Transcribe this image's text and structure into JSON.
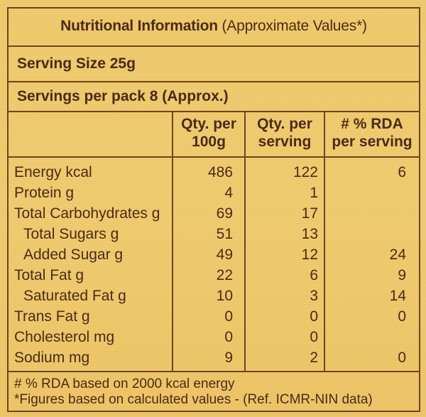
{
  "header": {
    "title_bold": "Nutritional Information",
    "title_rest": "(Approximate Values*)"
  },
  "serving_size": "Serving Size 25g",
  "servings_per_pack": "Servings per pack 8 (Approx.)",
  "columns": {
    "qty_100g": [
      "Qty. per",
      "100g"
    ],
    "qty_serving": [
      "Qty. per",
      "serving"
    ],
    "rda": [
      "# % RDA",
      "per serving"
    ]
  },
  "rows": [
    {
      "label": "Energy kcal",
      "per100g": "486",
      "perServing": "122",
      "rda": "6",
      "indent": false
    },
    {
      "label": "Protein g",
      "per100g": "4",
      "perServing": "1",
      "rda": "",
      "indent": false
    },
    {
      "label": "Total Carbohydrates g",
      "per100g": "69",
      "perServing": "17",
      "rda": "",
      "indent": false
    },
    {
      "label": "Total Sugars g",
      "per100g": "51",
      "perServing": "13",
      "rda": "",
      "indent": true
    },
    {
      "label": "Added Sugar g",
      "per100g": "49",
      "perServing": "12",
      "rda": "24",
      "indent": true
    },
    {
      "label": "Total Fat g",
      "per100g": "22",
      "perServing": "6",
      "rda": "9",
      "indent": false
    },
    {
      "label": "Saturated Fat g",
      "per100g": "10",
      "perServing": "3",
      "rda": "14",
      "indent": true
    },
    {
      "label": "Trans Fat g",
      "per100g": "0",
      "perServing": "0",
      "rda": "0",
      "indent": false
    },
    {
      "label": "Cholesterol mg",
      "per100g": "0",
      "perServing": "0",
      "rda": "",
      "indent": false
    },
    {
      "label": "Sodium mg",
      "per100g": "9",
      "perServing": "2",
      "rda": "0",
      "indent": false
    }
  ],
  "footnotes": [
    "# % RDA based on 2000 kcal energy",
    "*Figures based on calculated values - (Ref. ICMR-NIN data)"
  ]
}
